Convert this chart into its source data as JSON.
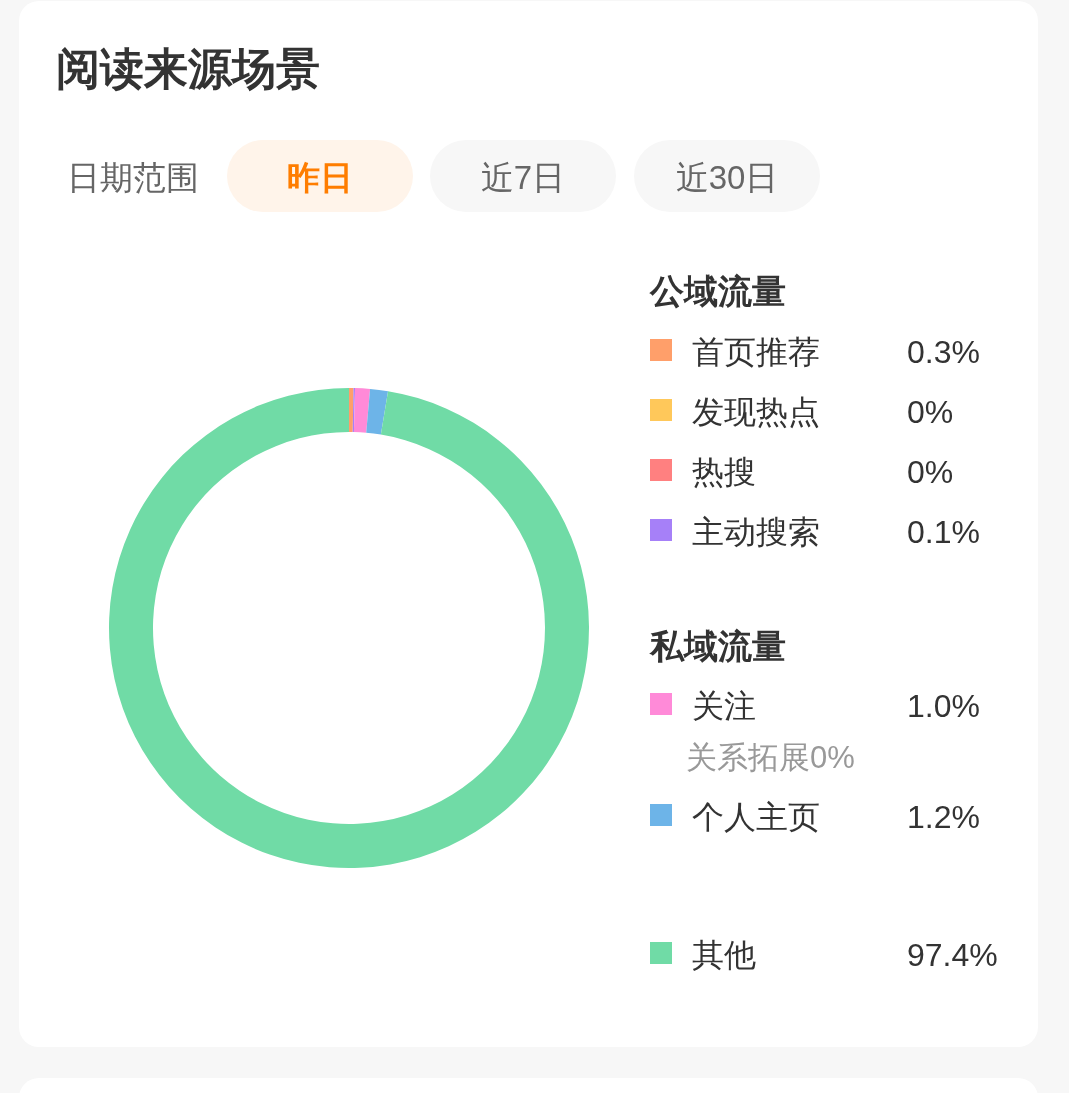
{
  "chart_data": {
    "type": "donut",
    "title": "阅读来源场景",
    "categories": [
      "首页推荐",
      "发现热点",
      "热搜",
      "主动搜索",
      "关注",
      "个人主页",
      "其他"
    ],
    "values": [
      0.3,
      0,
      0,
      0.1,
      1.0,
      1.2,
      97.4
    ],
    "value_labels": [
      "0.3%",
      "0%",
      "0%",
      "0.1%",
      "1.0%",
      "1.2%",
      "97.4%"
    ],
    "colors": [
      "#ff9f6a",
      "#ffc85a",
      "#ff8080",
      "#a680f8",
      "#ff8ad8",
      "#6db4e8",
      "#70dba6"
    ],
    "legend": "right",
    "annotations": [
      "日期范围",
      "昨日",
      "近7日",
      "近30日",
      "公域流量",
      "私域流量",
      "关系拓展0%"
    ]
  }
}
